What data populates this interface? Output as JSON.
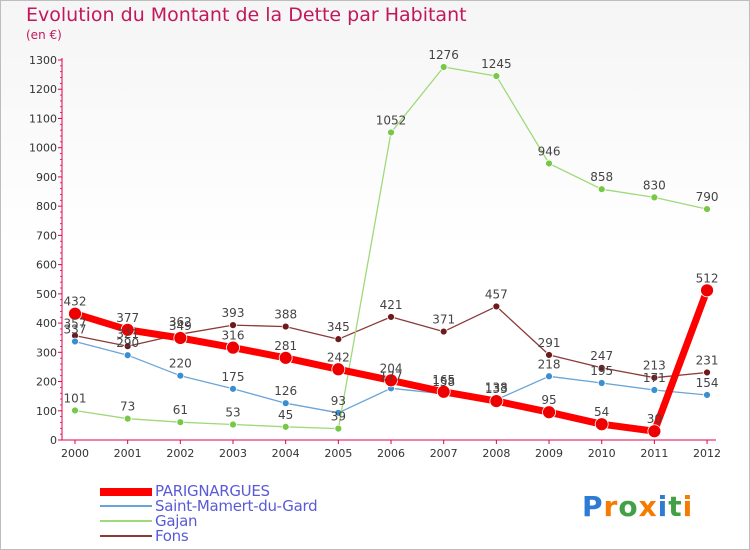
{
  "title": "Evolution du Montant de la Dette par Habitant",
  "subtitle": "(en €)",
  "logo": {
    "text": "Proxiti",
    "letters": [
      "P",
      "r",
      "o",
      "x",
      "i",
      "t",
      "i"
    ],
    "colors": [
      "#2e7bd6",
      "#f57c00",
      "#43a047",
      "#f57c00",
      "#2e7bd6",
      "#43a047",
      "#f57c00"
    ]
  },
  "colors": {
    "title": "#c2185b",
    "axis": "#e0004d",
    "legend_text": "#5a5ad6",
    "tick_text": "#333333",
    "label_text": "#444444"
  },
  "chart_data": {
    "type": "line",
    "title": "Evolution du Montant de la Dette par Habitant",
    "subtitle": "(en €)",
    "x": [
      "2000",
      "2001",
      "2002",
      "2003",
      "2004",
      "2005",
      "2006",
      "2007",
      "2008",
      "2009",
      "2010",
      "2011",
      "2012"
    ],
    "ylim": [
      0,
      1300
    ],
    "yticks": [
      0,
      100,
      200,
      300,
      400,
      500,
      600,
      700,
      800,
      900,
      1000,
      1100,
      1200,
      1300
    ],
    "grid": false,
    "legend_position": "bottom-left",
    "series": [
      {
        "name": "PARIGNARGUES",
        "color": "#ee0000",
        "line_color": "#ff0000",
        "width": 7,
        "marker_r": 6.5,
        "values": [
          432,
          377,
          349,
          316,
          281,
          242,
          204,
          165,
          133,
          95,
          54,
          30,
          512
        ]
      },
      {
        "name": "Saint-Mamert-du-Gard",
        "color": "#3a8fd0",
        "line_color": "#6aa4d8",
        "width": 1.3,
        "marker_r": 3.5,
        "values": [
          337,
          290,
          220,
          175,
          126,
          93,
          177,
          158,
          138,
          218,
          195,
          171,
          154
        ]
      },
      {
        "name": "Gajan",
        "color": "#78c848",
        "line_color": "#9fd97a",
        "width": 1.3,
        "marker_r": 3.5,
        "values": [
          101,
          73,
          61,
          53,
          45,
          39,
          1052,
          1276,
          1245,
          946,
          858,
          830,
          790
        ]
      },
      {
        "name": "Fons",
        "color": "#6e1a1a",
        "line_color": "#8b3a3a",
        "width": 1.3,
        "marker_r": 3.5,
        "values": [
          357,
          321,
          362,
          393,
          388,
          345,
          421,
          371,
          457,
          291,
          247,
          213,
          231
        ]
      }
    ]
  }
}
